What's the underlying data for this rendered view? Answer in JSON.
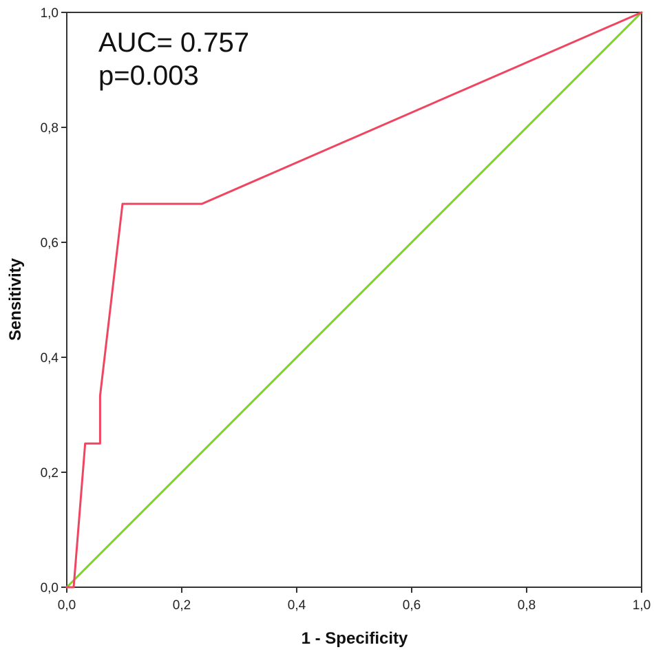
{
  "chart_data": {
    "type": "line",
    "title": "",
    "xlabel": "1 - Specificity",
    "ylabel": "Sensitivity",
    "xlim": [
      0,
      1
    ],
    "ylim": [
      0,
      1
    ],
    "grid": false,
    "x_ticks": [
      "0,0",
      "0,2",
      "0,4",
      "0,6",
      "0,8",
      "1,0"
    ],
    "y_ticks": [
      "0,0",
      "0,2",
      "0,4",
      "0,6",
      "0,8",
      "1,0"
    ],
    "annotations": [
      "AUC= 0.757",
      "p=0.003"
    ],
    "series": [
      {
        "color": "#ef4560",
        "x": [
          0.0,
          0.012,
          0.032,
          0.058,
          0.058,
          0.097,
          0.235,
          1.0
        ],
        "y": [
          0.0,
          0.0,
          0.25,
          0.25,
          0.333,
          0.667,
          0.667,
          1.0
        ]
      },
      {
        "color": "#7fd12c",
        "x": [
          0.0,
          1.0
        ],
        "y": [
          0.0,
          1.0
        ]
      }
    ]
  }
}
